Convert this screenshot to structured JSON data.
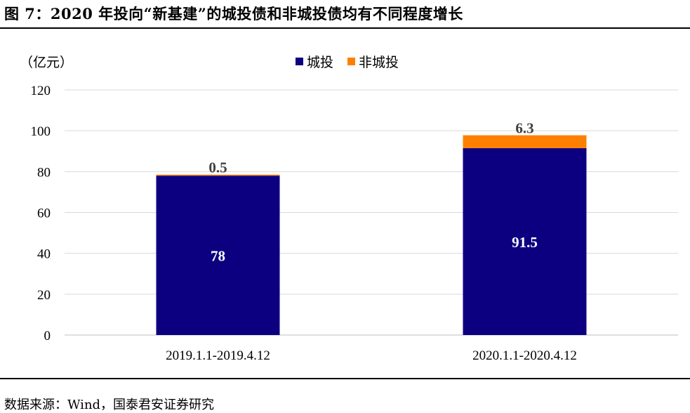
{
  "figure": {
    "title": "图 7：2020 年投向“新基建”的城投债和非城投债均有不同程度增长",
    "source": "数据来源：Wind，国泰君安证券研究"
  },
  "chart_data": {
    "type": "bar",
    "stacked": true,
    "unit_label": "（亿元）",
    "categories": [
      "2019.1.1-2019.4.12",
      "2020.1.1-2020.4.12"
    ],
    "series": [
      {
        "name": "城投",
        "values": [
          78,
          91.5
        ],
        "color": "#0d0080",
        "labels": [
          "78",
          "91.5"
        ]
      },
      {
        "name": "非城投",
        "values": [
          0.5,
          6.3
        ],
        "color": "#ff8000",
        "labels": [
          "0.5",
          "6.3"
        ]
      }
    ],
    "ylim": [
      0,
      120
    ],
    "yticks": [
      0,
      20,
      40,
      60,
      80,
      100,
      120
    ],
    "grid": true,
    "legend_position": "top-center",
    "xlabel": "",
    "ylabel": ""
  }
}
